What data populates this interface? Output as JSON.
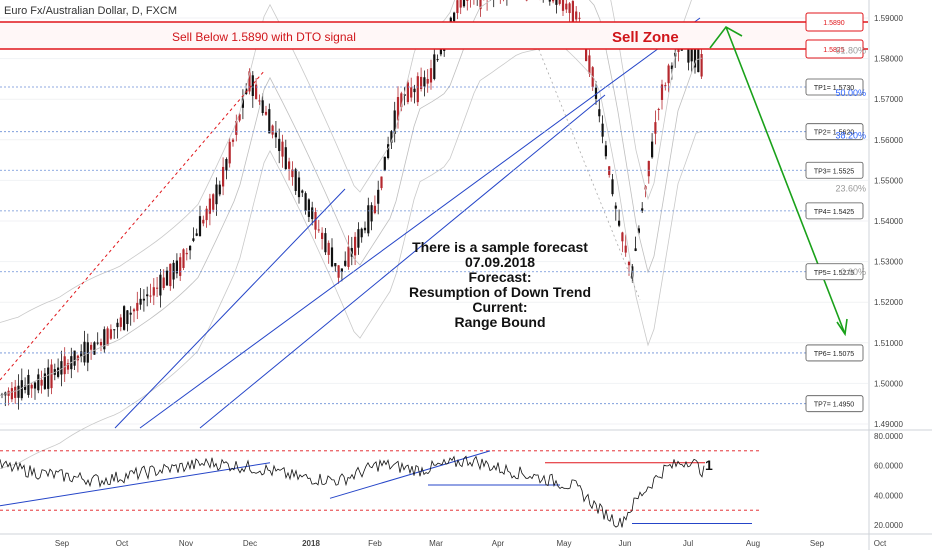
{
  "chart_title": "Euro Fx/Australian Dollar, D, FXCM",
  "sell_text": "Sell Below 1.5890 with DTO signal",
  "sell_zone": "Sell Zone",
  "forecast_lines": [
    "There is a sample forecast",
    "07.09.2018",
    "Forecast:",
    "Resumption of Down Trend",
    "Current:",
    "Range Bound"
  ],
  "zone_labels": [
    {
      "label": "1.5890",
      "value": 1.589
    },
    {
      "label": "1.5825",
      "value": 1.5825
    }
  ],
  "tp_labels": [
    {
      "label": "TP1= 1.5730",
      "value": 1.573
    },
    {
      "label": "TP2= 1.5620",
      "value": 1.562
    },
    {
      "label": "TP3= 1.5525",
      "value": 1.5525
    },
    {
      "label": "TP4= 1.5425",
      "value": 1.5425
    },
    {
      "label": "TP5= 1.5275",
      "value": 1.5275
    },
    {
      "label": "TP6= 1.5075",
      "value": 1.5075
    },
    {
      "label": "TP7= 1.4950",
      "value": 1.495
    }
  ],
  "fib_labels": [
    {
      "label": "61.80%",
      "value": 1.582
    },
    {
      "label": "50.00%",
      "value": 1.5715
    },
    {
      "label": "38.20%",
      "value": 1.561
    },
    {
      "label": "23.60%",
      "value": 1.548
    },
    {
      "label": "0.00%",
      "value": 1.5275
    }
  ],
  "price_axis": [
    "1.59000",
    "1.58000",
    "1.57000",
    "1.56000",
    "1.55000",
    "1.54000",
    "1.53000",
    "1.52000",
    "1.51000",
    "1.50000",
    "1.49000"
  ],
  "osc_axis": [
    "80.0000",
    "60.0000",
    "40.0000",
    "20.0000"
  ],
  "time_axis": [
    "Sep",
    "Oct",
    "Nov",
    "Dec",
    "2018",
    "Feb",
    "Mar",
    "Apr",
    "May",
    "Jun",
    "Jul",
    "Aug",
    "Sep",
    "Oct"
  ],
  "osc_marker": "1",
  "colors": {
    "sell": "#e0161b",
    "tp_border": "#555555",
    "fib": "#2962ff",
    "trend": "#2545c8",
    "arrow": "#1aa11a",
    "up": "#111111",
    "down": "#b5282e"
  }
}
